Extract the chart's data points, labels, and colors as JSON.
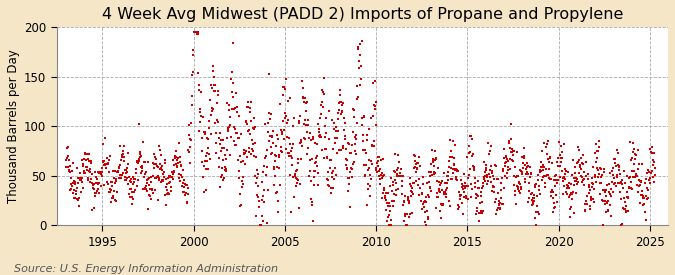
{
  "title": "4 Week Avg Midwest (PADD 2) Imports of Propane and Propylene",
  "ylabel": "Thousand Barrels per Day",
  "source": "Source: U.S. Energy Information Administration",
  "figure_bg": "#f5e6c8",
  "plot_bg": "#ffffff",
  "dot_color": "#cc0000",
  "dot_size": 3,
  "ylim": [
    0,
    200
  ],
  "yticks": [
    0,
    50,
    100,
    150,
    200
  ],
  "xlim_start": 1992.5,
  "xlim_end": 2026.0,
  "xticks": [
    1995,
    2000,
    2005,
    2010,
    2015,
    2020,
    2025
  ],
  "grid_color": "#aaaaaa",
  "title_fontsize": 11.5,
  "ylabel_fontsize": 8.5,
  "tick_fontsize": 8.5,
  "source_fontsize": 8,
  "seed": 42
}
